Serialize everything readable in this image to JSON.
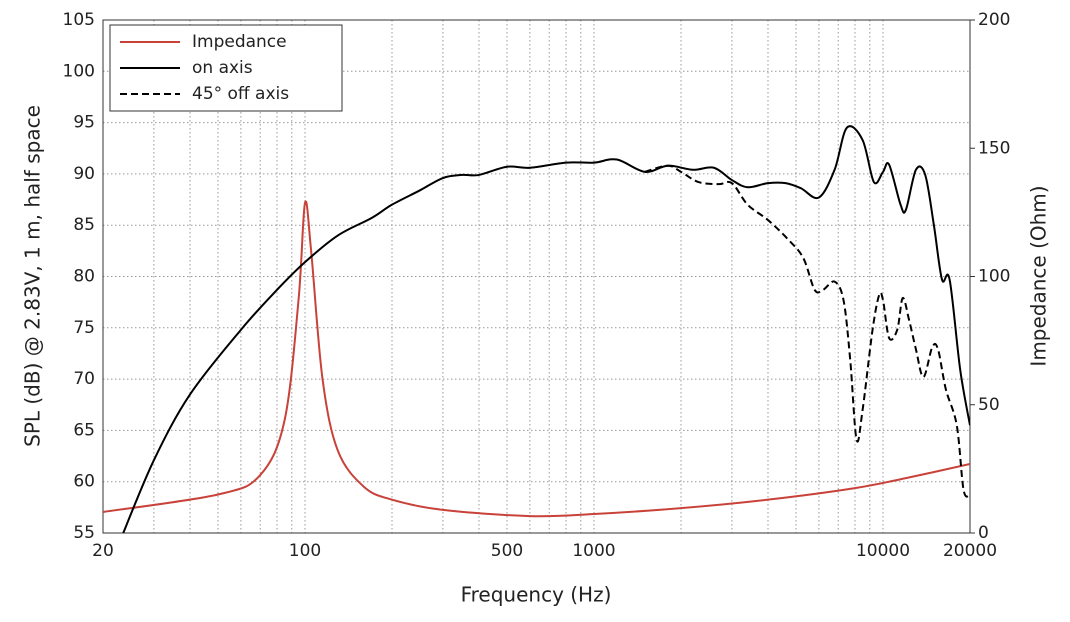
{
  "chart_data": {
    "type": "line",
    "xlabel": "Frequency (Hz)",
    "ylabel": "SPL (dB) @ 2.83V, 1 m, half space",
    "y2label": "Impedance (Ohm)",
    "xscale": "log",
    "xlim": [
      20,
      20000
    ],
    "xticks": [
      20,
      100,
      500,
      1000,
      10000,
      20000
    ],
    "xminorticks": [
      30,
      40,
      50,
      60,
      70,
      80,
      90,
      200,
      300,
      400,
      600,
      700,
      800,
      900,
      2000,
      3000,
      4000,
      5000,
      6000,
      7000,
      8000,
      9000
    ],
    "ylim": [
      55,
      105
    ],
    "yticks": [
      55,
      60,
      65,
      70,
      75,
      80,
      85,
      90,
      95,
      100,
      105
    ],
    "y2lim": [
      0,
      200
    ],
    "y2ticks": [
      0,
      50,
      100,
      150,
      200
    ],
    "grid": true,
    "legend": "upper left",
    "series": [
      {
        "name": "Impedance",
        "color": "#c8423a",
        "linestyle": "solid",
        "axis": "y2",
        "x": [
          20,
          50,
          70,
          85,
          95,
          100,
          105,
          115,
          130,
          160,
          200,
          300,
          600,
          1000,
          2000,
          4000,
          8000,
          12000,
          20000
        ],
        "values": [
          8.2,
          15,
          22.6,
          44,
          91,
          128.7,
          110,
          60,
          32,
          18,
          13,
          9,
          6.6,
          7.4,
          9.7,
          13,
          17.5,
          21.4,
          26.9
        ]
      },
      {
        "name": "on axis",
        "color": "#000000",
        "linestyle": "solid",
        "x": [
          23.5,
          30,
          40,
          60,
          80,
          100,
          130,
          170,
          200,
          250,
          300,
          350,
          400,
          500,
          600,
          800,
          1000,
          1200,
          1500,
          1800,
          2200,
          2600,
          3000,
          3400,
          4000,
          4600,
          5200,
          6000,
          6800,
          7500,
          8500,
          9300,
          10000,
          10500,
          11500,
          12000,
          13000,
          14000,
          15000,
          16000,
          17000,
          18500,
          20000
        ],
        "values": [
          55,
          62.1,
          68.5,
          74.8,
          78.7,
          81.4,
          84,
          85.7,
          87,
          88.4,
          89.6,
          89.9,
          89.9,
          90.7,
          90.6,
          91.1,
          91.1,
          91.4,
          90.2,
          90.8,
          90.4,
          90.6,
          89.4,
          88.7,
          89.1,
          89.1,
          88.6,
          87.7,
          90.4,
          94.5,
          93.3,
          89.2,
          90.2,
          90.9,
          87,
          86.5,
          90.4,
          89.9,
          85,
          79.7,
          79.7,
          70.9,
          65.5
        ]
      },
      {
        "name": "45° off axis",
        "color": "#000000",
        "linestyle": "dashed",
        "x": [
          1500,
          1800,
          2000,
          2300,
          2700,
          3000,
          3400,
          4000,
          4700,
          5300,
          5800,
          6200,
          6800,
          7300,
          7700,
          8100,
          8500,
          9200,
          9700,
          10000,
          10500,
          11200,
          11700,
          12300,
          13000,
          13800,
          14800,
          15500,
          16500,
          18000,
          19000,
          20000
        ],
        "values": [
          90.2,
          90.8,
          90.2,
          89.2,
          89,
          89.1,
          87,
          85.5,
          83.6,
          81.8,
          78.7,
          78.7,
          79.5,
          77.7,
          71.9,
          64.1,
          67,
          74.8,
          78.2,
          77.7,
          74,
          74.8,
          77.9,
          75.8,
          72.9,
          70.2,
          73.1,
          72.9,
          69,
          65.5,
          59.2,
          58.7
        ]
      }
    ]
  }
}
